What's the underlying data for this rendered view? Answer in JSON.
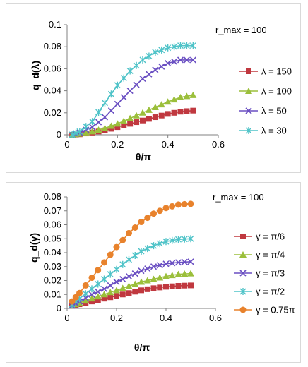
{
  "chart_data": [
    {
      "type": "line",
      "annotation": "r_max = 100",
      "xlabel": "θ/π",
      "ylabel": "q_d(λ)",
      "xlim": [
        0,
        0.6
      ],
      "ylim": [
        0,
        0.1
      ],
      "xticks": [
        "0",
        "0.2",
        "0.4",
        "0.6"
      ],
      "yticks": [
        "0",
        "0.02",
        "0.04",
        "0.06",
        "0.08",
        "0.1"
      ],
      "grid": false,
      "legend_position": "right",
      "series": [
        {
          "name": "λ = 150",
          "color": "#c0383f",
          "marker": "square",
          "x": [
            0.02,
            0.05,
            0.1,
            0.15,
            0.2,
            0.25,
            0.3,
            0.35,
            0.4,
            0.45,
            0.5
          ],
          "y": [
            0.0,
            0.0005,
            0.002,
            0.004,
            0.007,
            0.01,
            0.013,
            0.016,
            0.019,
            0.021,
            0.022
          ]
        },
        {
          "name": "λ = 100",
          "color": "#9bbf3b",
          "marker": "triangle",
          "x": [
            0.02,
            0.05,
            0.1,
            0.15,
            0.2,
            0.25,
            0.3,
            0.35,
            0.4,
            0.45,
            0.5
          ],
          "y": [
            0.0,
            0.001,
            0.003,
            0.006,
            0.01,
            0.015,
            0.02,
            0.025,
            0.03,
            0.034,
            0.036
          ]
        },
        {
          "name": "λ = 50",
          "color": "#6a4fc2",
          "marker": "x",
          "x": [
            0.02,
            0.05,
            0.1,
            0.15,
            0.2,
            0.25,
            0.3,
            0.35,
            0.4,
            0.45,
            0.5
          ],
          "y": [
            0.0,
            0.002,
            0.007,
            0.016,
            0.028,
            0.04,
            0.051,
            0.059,
            0.065,
            0.068,
            0.068
          ]
        },
        {
          "name": "λ = 30",
          "color": "#4fc3c8",
          "marker": "asterisk",
          "x": [
            0.02,
            0.05,
            0.1,
            0.15,
            0.2,
            0.25,
            0.3,
            0.35,
            0.4,
            0.45,
            0.5
          ],
          "y": [
            0.0,
            0.003,
            0.012,
            0.029,
            0.045,
            0.058,
            0.068,
            0.075,
            0.079,
            0.081,
            0.081
          ]
        }
      ]
    },
    {
      "type": "line",
      "annotation": "r_max = 100",
      "xlabel": "θ/π",
      "ylabel": "q_d(γ)",
      "xlim": [
        0,
        0.6
      ],
      "ylim": [
        0,
        0.08
      ],
      "xticks": [
        "0",
        "0.2",
        "0.4",
        "0.6"
      ],
      "yticks": [
        "0",
        "0.01",
        "0.02",
        "0.03",
        "0.04",
        "0.05",
        "0.06",
        "0.07",
        "0.08"
      ],
      "grid": false,
      "legend_position": "right",
      "series": [
        {
          "name": "γ = π/6",
          "color": "#c0383f",
          "marker": "square",
          "x": [
            0.02,
            0.05,
            0.1,
            0.15,
            0.2,
            0.25,
            0.3,
            0.35,
            0.4,
            0.45,
            0.5
          ],
          "y": [
            0.002,
            0.003,
            0.005,
            0.007,
            0.009,
            0.011,
            0.013,
            0.0145,
            0.0155,
            0.0162,
            0.0165
          ]
        },
        {
          "name": "γ = π/4",
          "color": "#9bbf3b",
          "marker": "triangle",
          "x": [
            0.02,
            0.05,
            0.1,
            0.15,
            0.2,
            0.25,
            0.3,
            0.35,
            0.4,
            0.45,
            0.5
          ],
          "y": [
            0.002,
            0.004,
            0.007,
            0.01,
            0.013,
            0.016,
            0.019,
            0.021,
            0.023,
            0.0245,
            0.025
          ]
        },
        {
          "name": "γ = π/3",
          "color": "#6a4fc2",
          "marker": "x",
          "x": [
            0.02,
            0.05,
            0.1,
            0.15,
            0.2,
            0.25,
            0.3,
            0.35,
            0.4,
            0.45,
            0.5
          ],
          "y": [
            0.002,
            0.005,
            0.01,
            0.014,
            0.019,
            0.023,
            0.027,
            0.03,
            0.032,
            0.033,
            0.0335
          ]
        },
        {
          "name": "γ = π/2",
          "color": "#4fc3c8",
          "marker": "asterisk",
          "x": [
            0.02,
            0.05,
            0.1,
            0.15,
            0.2,
            0.25,
            0.3,
            0.35,
            0.4,
            0.45,
            0.5
          ],
          "y": [
            0.003,
            0.007,
            0.014,
            0.021,
            0.028,
            0.035,
            0.041,
            0.045,
            0.048,
            0.0495,
            0.05
          ]
        },
        {
          "name": "γ = 0.75π",
          "color": "#e8822c",
          "marker": "circle",
          "x": [
            0.02,
            0.05,
            0.1,
            0.15,
            0.2,
            0.25,
            0.3,
            0.35,
            0.4,
            0.45,
            0.5
          ],
          "y": [
            0.005,
            0.011,
            0.022,
            0.033,
            0.044,
            0.054,
            0.062,
            0.068,
            0.072,
            0.0745,
            0.075
          ]
        }
      ]
    }
  ]
}
